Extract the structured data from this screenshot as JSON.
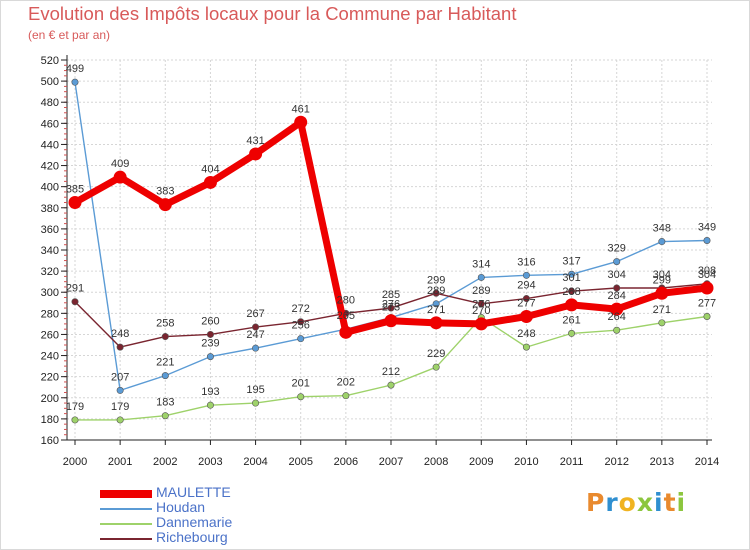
{
  "title": "Evolution des Impôts locaux pour la Commune par Habitant",
  "subtitle": "(en € et par an)",
  "brand": {
    "logo_letters": [
      "P",
      "r",
      "o",
      "x",
      "i",
      "t",
      "i"
    ],
    "logo_colors": [
      "#e98a2e",
      "#2f8fd0",
      "#f0b321",
      "#8cc63e",
      "#2f8fd0",
      "#e98a2e",
      "#8cc63e"
    ]
  },
  "chart_data": {
    "type": "line",
    "x": [
      "2000",
      "2001",
      "2002",
      "2003",
      "2004",
      "2005",
      "2006",
      "2007",
      "2008",
      "2009",
      "2010",
      "2011",
      "2012",
      "2013",
      "2014"
    ],
    "ylim": [
      160,
      520
    ],
    "yticks": [
      160,
      180,
      200,
      220,
      240,
      260,
      280,
      300,
      320,
      340,
      360,
      380,
      400,
      420,
      440,
      460,
      480,
      500,
      520
    ],
    "grid": true,
    "legend_position": "bottom-left",
    "series": [
      {
        "name": "MAULETTE",
        "color": "#ee0000",
        "values": [
          385,
          409,
          383,
          404,
          431,
          461,
          262,
          273,
          271,
          270,
          277,
          288,
          284,
          299,
          304
        ],
        "labels": [
          "385",
          "409",
          "383",
          "404",
          "431",
          "461",
          "",
          "273",
          "271",
          "270",
          "277",
          "288",
          "284",
          "299",
          "304"
        ]
      },
      {
        "name": "Houdan",
        "color": "#5b9bd5",
        "values": [
          499,
          207,
          221,
          239,
          247,
          256,
          265,
          276,
          289,
          314,
          316,
          317,
          329,
          348,
          349
        ],
        "labels": [
          "499",
          "207",
          "221",
          "239",
          "247",
          "256",
          "265",
          "276",
          "289",
          "314",
          "316",
          "317",
          "329",
          "348",
          "349"
        ]
      },
      {
        "name": "Dannemarie",
        "color": "#9ed26a",
        "values": [
          179,
          179,
          183,
          193,
          195,
          201,
          202,
          212,
          229,
          276,
          248,
          261,
          264,
          271,
          277
        ],
        "labels": [
          "179",
          "179",
          "183",
          "193",
          "195",
          "201",
          "202",
          "212",
          "229",
          "276",
          "248",
          "261",
          "264",
          "271",
          "277"
        ]
      },
      {
        "name": "Richebourg",
        "color": "#7a2530",
        "values": [
          291,
          248,
          258,
          260,
          267,
          272,
          280,
          285,
          299,
          289,
          294,
          301,
          304,
          304,
          308
        ],
        "labels": [
          "291",
          "248",
          "258",
          "260",
          "267",
          "272",
          "280",
          "285",
          "299",
          "289",
          "294",
          "301",
          "304",
          "304",
          "308"
        ]
      }
    ]
  }
}
